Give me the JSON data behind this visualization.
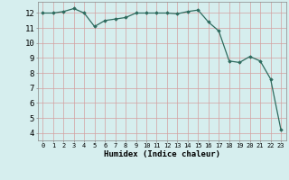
{
  "x": [
    0,
    1,
    2,
    3,
    4,
    5,
    6,
    7,
    8,
    9,
    10,
    11,
    12,
    13,
    14,
    15,
    16,
    17,
    18,
    19,
    20,
    21,
    22,
    23
  ],
  "y": [
    12.0,
    12.0,
    12.1,
    12.3,
    12.0,
    11.1,
    11.5,
    11.6,
    11.7,
    12.0,
    12.0,
    12.0,
    12.0,
    11.95,
    12.1,
    12.2,
    11.4,
    10.8,
    8.8,
    8.7,
    9.1,
    8.8,
    7.6,
    4.2
  ],
  "line_color": "#2d6b5e",
  "marker": "D",
  "markersize": 1.8,
  "linewidth": 0.9,
  "xlabel": "Humidex (Indice chaleur)",
  "xlabel_fontsize": 6.5,
  "xlim": [
    -0.5,
    23.5
  ],
  "ylim": [
    3.5,
    12.75
  ],
  "yticks": [
    4,
    5,
    6,
    7,
    8,
    9,
    10,
    11,
    12
  ],
  "xticks": [
    0,
    1,
    2,
    3,
    4,
    5,
    6,
    7,
    8,
    9,
    10,
    11,
    12,
    13,
    14,
    15,
    16,
    17,
    18,
    19,
    20,
    21,
    22,
    23
  ],
  "xtick_fontsize": 5.0,
  "ytick_fontsize": 6.5,
  "grid_color_major": "#d4a0a0",
  "grid_color_minor": "#e8c8c8",
  "bg_color": "#d6eeee",
  "fig_bg": "#d6eeee",
  "spine_color": "#888888"
}
